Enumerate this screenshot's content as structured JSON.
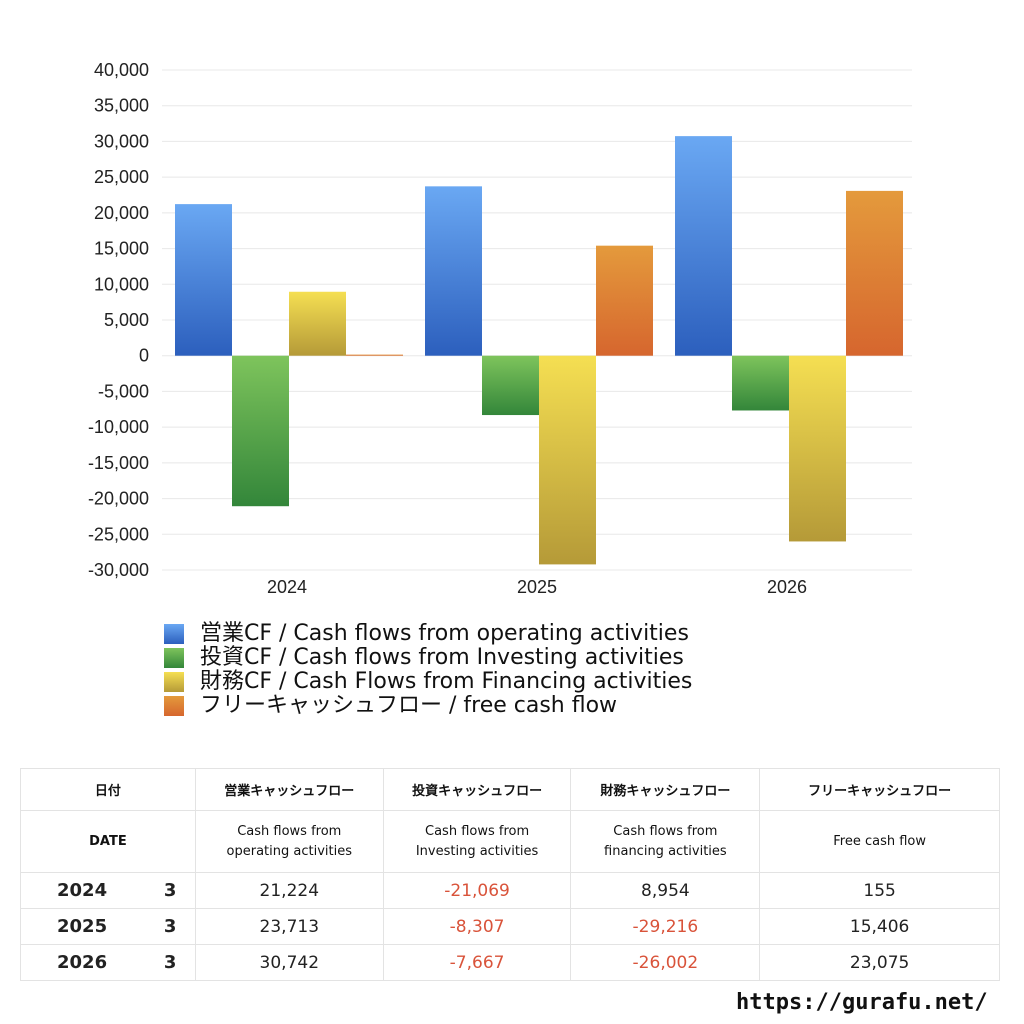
{
  "chart_data": {
    "type": "bar",
    "categories": [
      "2024",
      "2025",
      "2026"
    ],
    "series": [
      {
        "name": "営業CF / Cash flows from operating activities",
        "values": [
          21224,
          23713,
          30742
        ],
        "color_top": "#6aa8f3",
        "color_bottom": "#2c5fbd"
      },
      {
        "name": "投資CF / Cash flows from Investing activities",
        "values": [
          -21069,
          -8307,
          -7667
        ],
        "color_top": "#7ec45c",
        "color_bottom": "#33863a"
      },
      {
        "name": "財務CF / Cash Flows from Financing activities",
        "values": [
          8954,
          -29216,
          -26002
        ],
        "color_top": "#f5df52",
        "color_bottom": "#b59a38"
      },
      {
        "name": "フリーキャッシュフロー / free cash flow",
        "values": [
          155,
          15406,
          23075
        ],
        "color_top": "#e49a3c",
        "color_bottom": "#d6662e"
      }
    ],
    "yticks": [
      "40,000",
      "35,000",
      "30,000",
      "25,000",
      "20,000",
      "15,000",
      "10,000",
      "5,000",
      "0",
      "-5,000",
      "-10,000",
      "-15,000",
      "-20,000",
      "-25,000",
      "-30,000"
    ],
    "ylim": [
      -30000,
      40000
    ],
    "grid": true,
    "legend_position": "bottom-left"
  },
  "table": {
    "header_jp": [
      "日付",
      "営業キャッシュフロー",
      "投資キャッシュフロー",
      "財務キャッシュフロー",
      "フリーキャッシュフロー"
    ],
    "header_en": [
      "DATE",
      "Cash flows from\noperating activities",
      "Cash flows from\nInvesting activities",
      "Cash flows from\nfinancing activities",
      "Free cash flow"
    ],
    "rows": [
      {
        "year": "2024",
        "month": "3",
        "operating": "21,224",
        "investing": "-21,069",
        "financing": "8,954",
        "free": "155"
      },
      {
        "year": "2025",
        "month": "3",
        "operating": "23,713",
        "investing": "-8,307",
        "financing": "-29,216",
        "free": "15,406"
      },
      {
        "year": "2026",
        "month": "3",
        "operating": "30,742",
        "investing": "-7,667",
        "financing": "-26,002",
        "free": "23,075"
      }
    ]
  },
  "footer": {
    "url": "https://gurafu.net/"
  },
  "colors": {
    "negative_text": "#d9533a",
    "gridline": "#e8e8e8"
  }
}
